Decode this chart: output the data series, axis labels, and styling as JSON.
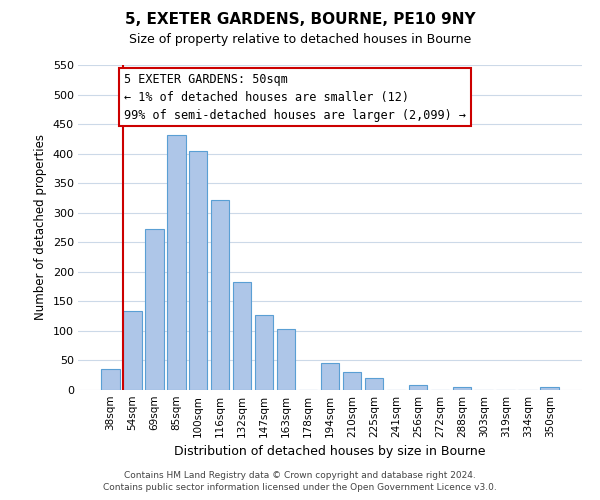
{
  "title": "5, EXETER GARDENS, BOURNE, PE10 9NY",
  "subtitle": "Size of property relative to detached houses in Bourne",
  "xlabel": "Distribution of detached houses by size in Bourne",
  "ylabel": "Number of detached properties",
  "categories": [
    "38sqm",
    "54sqm",
    "69sqm",
    "85sqm",
    "100sqm",
    "116sqm",
    "132sqm",
    "147sqm",
    "163sqm",
    "178sqm",
    "194sqm",
    "210sqm",
    "225sqm",
    "241sqm",
    "256sqm",
    "272sqm",
    "288sqm",
    "303sqm",
    "319sqm",
    "334sqm",
    "350sqm"
  ],
  "values": [
    35,
    133,
    272,
    432,
    405,
    322,
    183,
    127,
    103,
    0,
    46,
    30,
    20,
    0,
    8,
    0,
    5,
    0,
    0,
    0,
    5
  ],
  "bar_color": "#aec6e8",
  "bar_edge_color": "#5a9fd4",
  "marker_line_color": "#cc0000",
  "ylim": [
    0,
    550
  ],
  "yticks": [
    0,
    50,
    100,
    150,
    200,
    250,
    300,
    350,
    400,
    450,
    500,
    550
  ],
  "annotation_title": "5 EXETER GARDENS: 50sqm",
  "annotation_line1": "← 1% of detached houses are smaller (12)",
  "annotation_line2": "99% of semi-detached houses are larger (2,099) →",
  "annotation_box_color": "#ffffff",
  "annotation_box_edge": "#cc0000",
  "footer_line1": "Contains HM Land Registry data © Crown copyright and database right 2024.",
  "footer_line2": "Contains public sector information licensed under the Open Government Licence v3.0.",
  "bg_color": "#ffffff",
  "grid_color": "#ccd9e8"
}
